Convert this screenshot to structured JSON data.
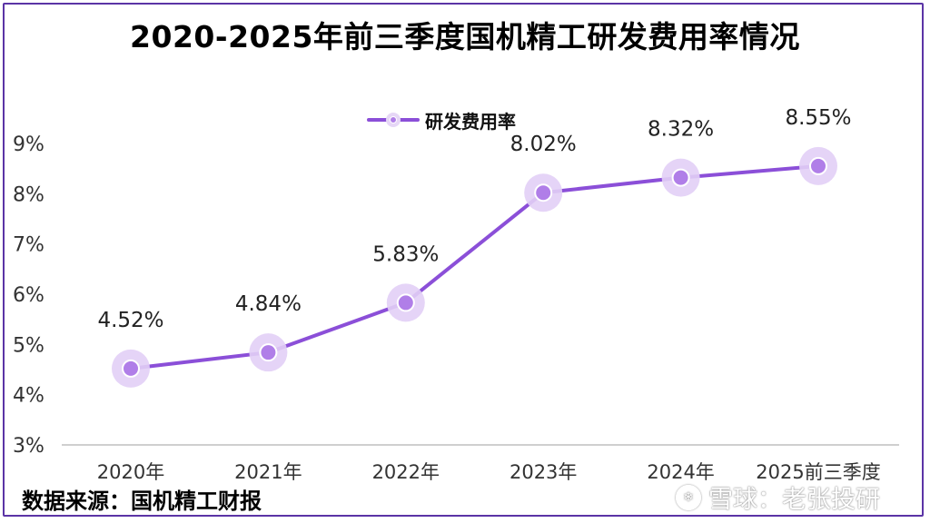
{
  "chart_data": {
    "type": "line",
    "title": "2020-2025年前三季度国机精工研发费用率情况",
    "categories": [
      "2020年",
      "2021年",
      "2022年",
      "2023年",
      "2024年",
      "2025前三季度"
    ],
    "series": [
      {
        "name": "研发费用率",
        "values": [
          4.52,
          4.84,
          5.83,
          8.02,
          8.32,
          8.55
        ],
        "labels": [
          "4.52%",
          "4.84%",
          "5.83%",
          "8.02%",
          "8.32%",
          "8.55%"
        ]
      }
    ],
    "yticks": [
      "3%",
      "4%",
      "5%",
      "6%",
      "7%",
      "8%",
      "9%"
    ],
    "ylim": [
      3,
      9
    ],
    "legend_position": "top",
    "grid": false,
    "colors": {
      "line": "#8b4fd8",
      "marker_halo": "#e2cff6",
      "marker": "#b07ee8",
      "axis": "#bfbfbf"
    }
  },
  "footer": {
    "source": "数据来源：国机精工财报",
    "watermark": "雪球：老张投研"
  }
}
